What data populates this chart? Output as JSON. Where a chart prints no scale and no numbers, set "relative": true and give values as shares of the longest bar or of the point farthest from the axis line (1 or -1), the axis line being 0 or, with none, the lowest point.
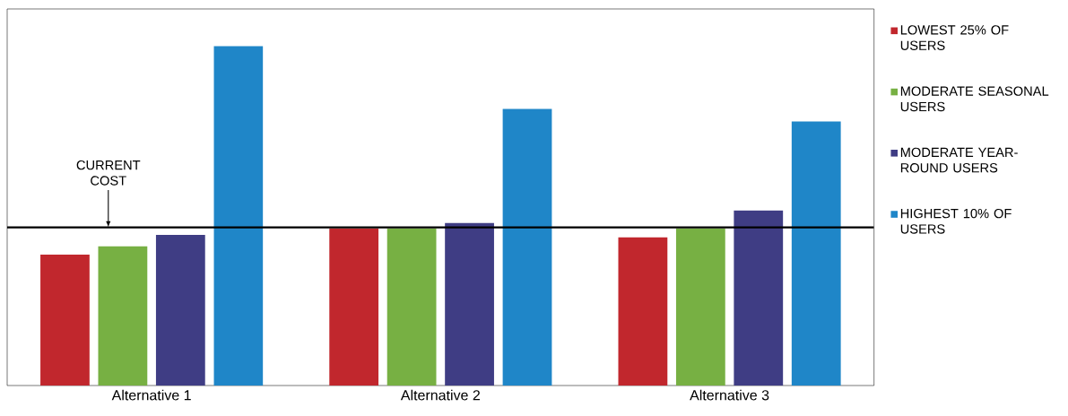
{
  "chart_data": {
    "type": "bar",
    "relative": true,
    "categories": [
      "Alternative 1",
      "Alternative 2",
      "Alternative 3"
    ],
    "series": [
      {
        "name": "LOWEST 25% OF USERS",
        "color": "#c1272d",
        "values": [
          0.386,
          0.463,
          0.437
        ]
      },
      {
        "name": "MODERATE SEASONAL USERS",
        "color": "#77b043",
        "values": [
          0.41,
          0.463,
          0.463
        ]
      },
      {
        "name": "MODERATE YEAR-ROUND USERS",
        "color": "#3f3d84",
        "values": [
          0.444,
          0.479,
          0.516
        ]
      },
      {
        "name": "HIGHEST 10% OF USERS",
        "color": "#1f86c8",
        "values": [
          1,
          0.815,
          0.778
        ]
      }
    ],
    "ref_lines": [
      {
        "axis": "y",
        "value": 0.466,
        "label": "CURRENT COST",
        "color": "#000000"
      }
    ],
    "legend": "right"
  }
}
